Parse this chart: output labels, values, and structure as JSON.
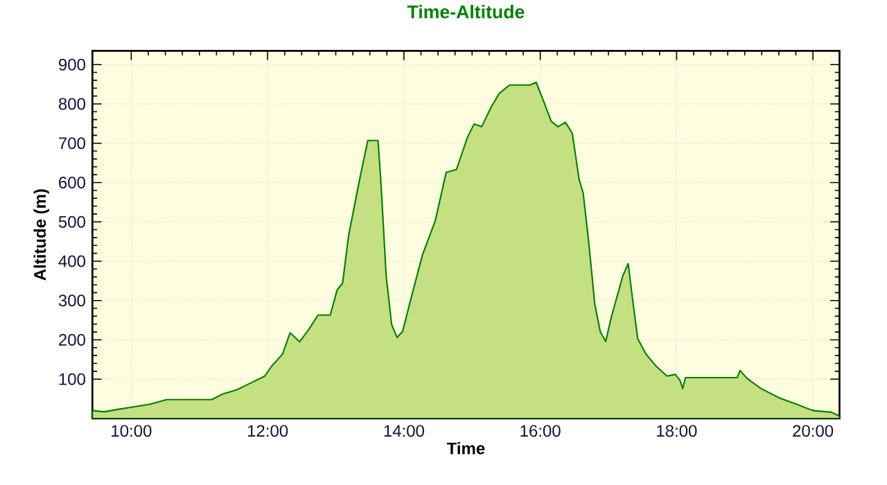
{
  "chart_data": {
    "type": "area",
    "title": "Time-Altitude",
    "xlabel": "Time",
    "ylabel": "Altitude (m)",
    "xlim": [
      9.43,
      20.39
    ],
    "ylim": [
      0,
      935
    ],
    "xticks": [
      {
        "value": 10,
        "label": "10:00"
      },
      {
        "value": 12,
        "label": "12:00"
      },
      {
        "value": 14,
        "label": "14:00"
      },
      {
        "value": 16,
        "label": "16:00"
      },
      {
        "value": 18,
        "label": "18:00"
      },
      {
        "value": 20,
        "label": "20:00"
      }
    ],
    "yticks": [
      100,
      200,
      300,
      400,
      500,
      600,
      700,
      800,
      900
    ],
    "grid": true,
    "marker": "none",
    "line_style": "solid",
    "series": [
      {
        "color": "#c4e082",
        "x": [
          9.43,
          9.6,
          9.8,
          10.05,
          10.27,
          10.52,
          11.18,
          11.34,
          11.55,
          11.75,
          11.96,
          12.06,
          12.22,
          12.33,
          12.47,
          12.61,
          12.74,
          12.92,
          13.02,
          13.1,
          13.19,
          13.35,
          13.47,
          13.62,
          13.66,
          13.74,
          13.82,
          13.9,
          13.98,
          14.11,
          14.27,
          14.46,
          14.62,
          14.77,
          14.93,
          15.03,
          15.14,
          15.28,
          15.4,
          15.55,
          15.85,
          15.94,
          16.06,
          16.16,
          16.26,
          16.37,
          16.47,
          16.57,
          16.63,
          16.71,
          16.8,
          16.88,
          16.96,
          17.04,
          17.21,
          17.29,
          17.35,
          17.43,
          17.55,
          17.7,
          17.86,
          17.98,
          18.05,
          18.09,
          18.13,
          18.89,
          18.93,
          19.04,
          19.24,
          19.51,
          19.75,
          20.0,
          20.27,
          20.39
        ],
        "values": [
          20,
          17,
          23,
          30,
          36,
          48,
          48,
          62,
          73,
          90,
          108,
          133,
          164,
          218,
          195,
          228,
          263,
          263,
          327,
          344,
          467,
          608,
          707,
          707,
          608,
          362,
          239,
          206,
          221,
          309,
          415,
          503,
          626,
          633,
          714,
          749,
          742,
          792,
          827,
          848,
          848,
          855,
          802,
          756,
          742,
          753,
          725,
          608,
          573,
          450,
          291,
          221,
          196,
          256,
          362,
          394,
          309,
          203,
          164,
          133,
          108,
          112,
          97,
          76,
          104,
          104,
          122,
          101,
          76,
          52,
          37,
          20,
          16,
          6
        ]
      }
    ]
  }
}
